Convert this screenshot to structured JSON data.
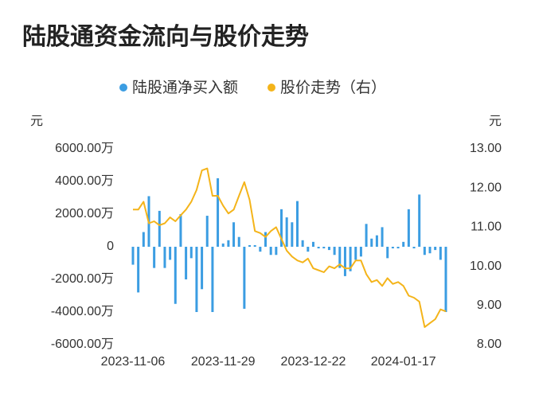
{
  "chart_data": {
    "type": "bar-line",
    "title": "陆股通资金流向与股价走势",
    "y_label": "元",
    "y2_label": "元",
    "legend": "top",
    "categories": [
      "2023-11-06",
      null,
      null,
      null,
      null,
      null,
      null,
      null,
      null,
      null,
      null,
      null,
      null,
      null,
      null,
      null,
      null,
      "2023-11-29",
      null,
      null,
      null,
      null,
      null,
      null,
      null,
      null,
      null,
      null,
      null,
      null,
      null,
      null,
      null,
      null,
      "2023-12-22",
      null,
      null,
      null,
      null,
      null,
      null,
      null,
      null,
      null,
      null,
      null,
      null,
      null,
      null,
      null,
      null,
      "2024-01-17",
      null,
      null,
      null,
      null,
      null,
      null,
      null,
      null
    ],
    "series": [
      {
        "name": "陆股通净买入额",
        "type": "bar",
        "color": "#3b9de2",
        "values": [
          -1100,
          -2800,
          900,
          3100,
          -1300,
          2200,
          -1300,
          -800,
          -3500,
          2000,
          -2000,
          -700,
          -4000,
          -2600,
          1900,
          -4000,
          4200,
          200,
          400,
          1500,
          600,
          -3800,
          100,
          100,
          -300,
          900,
          -500,
          -500,
          2300,
          1800,
          1500,
          2800,
          400,
          -300,
          300,
          -100,
          -100,
          -200,
          -500,
          -1300,
          -1800,
          -1500,
          -800,
          -600,
          1400,
          500,
          700,
          1200,
          -700,
          -100,
          -100,
          300,
          2300,
          -100,
          3200,
          -500,
          -400,
          -200,
          -800,
          -4000
        ]
      },
      {
        "name": "股价走势（右）",
        "type": "line",
        "axis": "y2",
        "color": "#f4b41a",
        "values": [
          11.45,
          11.45,
          11.65,
          11.1,
          11.15,
          11.05,
          11.1,
          11.25,
          11.15,
          11.3,
          11.45,
          11.65,
          11.95,
          12.45,
          12.5,
          11.8,
          11.8,
          11.55,
          11.35,
          11.45,
          11.8,
          12.15,
          11.7,
          10.9,
          10.85,
          10.75,
          10.9,
          11.0,
          10.7,
          10.4,
          10.25,
          10.15,
          10.1,
          10.2,
          9.95,
          9.9,
          9.85,
          10.0,
          9.95,
          10.05,
          9.95,
          9.95,
          10.15,
          10.15,
          9.8,
          9.6,
          9.65,
          9.5,
          9.7,
          9.55,
          9.6,
          9.5,
          9.25,
          9.2,
          9.1,
          8.45,
          8.55,
          8.65,
          8.9,
          8.85
        ]
      }
    ],
    "ylim": [
      -6000,
      6000
    ],
    "yticks": [
      {
        "value": 6000,
        "label": "6000.00万"
      },
      {
        "value": 4000,
        "label": "4000.00万"
      },
      {
        "value": 2000,
        "label": "2000.00万"
      },
      0,
      {
        "value": -2000,
        "label": "-2000.00万"
      },
      {
        "value": -4000,
        "label": "-4000.00万"
      },
      {
        "value": -6000,
        "label": "-6000.00万"
      }
    ],
    "y2lim": [
      8,
      13
    ],
    "y2ticks": [
      {
        "value": 13,
        "label": "13.00"
      },
      {
        "value": 12,
        "label": "12.00"
      },
      {
        "value": 11,
        "label": "11.00"
      },
      {
        "value": 10,
        "label": "10.00"
      },
      {
        "value": 9,
        "label": "9.00"
      },
      {
        "value": 8,
        "label": "8.00"
      }
    ]
  }
}
